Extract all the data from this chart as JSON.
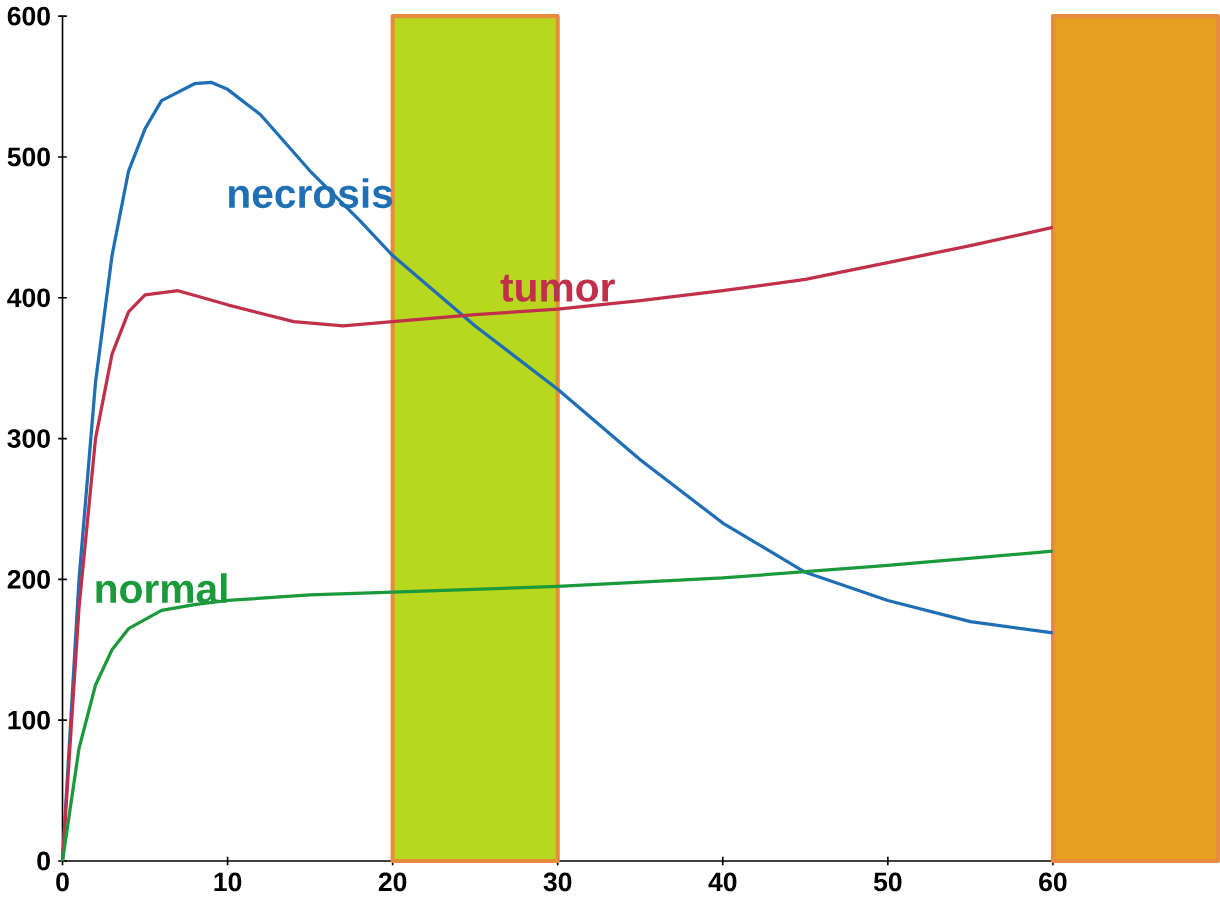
{
  "chart_data": {
    "type": "line",
    "xlim": [
      0,
      70
    ],
    "ylim": [
      0,
      600
    ],
    "xticks": [
      0,
      10,
      20,
      30,
      40,
      50,
      60
    ],
    "yticks": [
      0,
      100,
      200,
      300,
      400,
      500,
      600
    ],
    "grid": false,
    "legend": false,
    "marker": "none",
    "line_style": "solid",
    "bands": [
      {
        "axis": "x",
        "from": 20,
        "to": 30,
        "color": "#b8d820"
      },
      {
        "axis": "x",
        "from": 60,
        "to": 70,
        "color": "#e8a020"
      }
    ],
    "series": [
      {
        "name": "necrosis",
        "color": "#1f6fb5",
        "x": [
          0,
          1,
          2,
          3,
          4,
          5,
          6,
          8,
          9,
          10,
          12,
          15,
          18,
          20,
          25,
          30,
          35,
          40,
          45,
          50,
          55,
          60
        ],
        "values": [
          0,
          200,
          340,
          430,
          490,
          520,
          540,
          552,
          553,
          548,
          530,
          490,
          455,
          430,
          380,
          335,
          285,
          240,
          205,
          185,
          170,
          162
        ]
      },
      {
        "name": "tumor",
        "color": "#c0304a",
        "x": [
          0,
          1,
          2,
          3,
          4,
          5,
          7,
          10,
          14,
          17,
          20,
          25,
          30,
          35,
          40,
          45,
          50,
          55,
          60
        ],
        "values": [
          0,
          180,
          300,
          360,
          390,
          402,
          405,
          395,
          383,
          380,
          383,
          388,
          392,
          398,
          405,
          413,
          425,
          437,
          450
        ]
      },
      {
        "name": "normal",
        "color": "#1a9a3a",
        "x": [
          0,
          1,
          2,
          3,
          4,
          6,
          8,
          10,
          15,
          20,
          30,
          40,
          50,
          60
        ],
        "values": [
          0,
          80,
          125,
          150,
          165,
          178,
          182,
          185,
          189,
          191,
          195,
          201,
          210,
          220
        ]
      }
    ]
  }
}
